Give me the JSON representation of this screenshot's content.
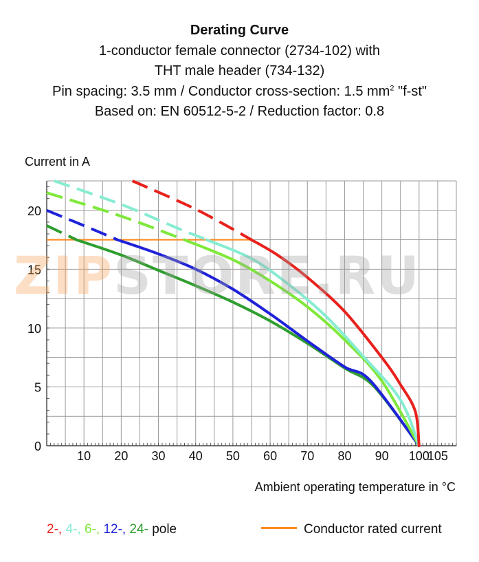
{
  "title": {
    "line1": "Derating Curve",
    "line2": "1-conductor female connector (2734-102) with",
    "line3": "THT male header (734-132)",
    "line4_a": "Pin spacing: 3.5 mm / Conductor cross-section: 1.5 mm",
    "line4_sup": "2",
    "line4_b": " \"f-st\"",
    "line5": "Based on: EN 60512-5-2 / Reduction factor: 0.8"
  },
  "watermark": {
    "a": "ZIP",
    "b": "STORE.RU"
  },
  "legend": {
    "poles": [
      {
        "text": "2-",
        "sep": ", ",
        "color": "#e8211c"
      },
      {
        "text": "4-",
        "sep": ", ",
        "color": "#86ecd2"
      },
      {
        "text": "6-",
        "sep": ", ",
        "color": "#7fe83a"
      },
      {
        "text": "12-",
        "sep": ", ",
        "color": "#1f22d8"
      },
      {
        "text": "24-",
        "sep": " ",
        "color": "#2e9e2e"
      }
    ],
    "pole_suffix": "pole",
    "rated_label": "Conductor rated current",
    "rated_color": "#ff8a1e"
  },
  "chart_data": {
    "type": "line",
    "ylabel": "Current in A",
    "xlabel": "Ambient operating temperature in °C",
    "xlim": [
      0,
      110
    ],
    "ylim": [
      0,
      22.5
    ],
    "x_ticks": [
      10,
      20,
      30,
      40,
      50,
      60,
      70,
      80,
      90,
      100,
      105
    ],
    "y_ticks": [
      0,
      5,
      10,
      15,
      20
    ],
    "grid": true,
    "rated_current": {
      "name": "Conductor rated current",
      "value": 17.5,
      "x_end": 55,
      "color": "#ff8a1e"
    },
    "series": [
      {
        "name": "2-",
        "color": "#e8211c",
        "dashed": [
          [
            23,
            22.5
          ],
          [
            40,
            20.1
          ],
          [
            55,
            17.5
          ]
        ],
        "solid": [
          [
            55,
            17.5
          ],
          [
            62,
            16.2
          ],
          [
            70,
            14.3
          ],
          [
            80,
            11.4
          ],
          [
            90,
            7.5
          ],
          [
            95,
            5.2
          ],
          [
            99,
            2.9
          ],
          [
            100,
            0
          ]
        ]
      },
      {
        "name": "4-",
        "color": "#86ecd2",
        "dashed": [
          [
            2,
            22.5
          ],
          [
            20,
            20.5
          ],
          [
            35,
            18.5
          ],
          [
            43,
            17.5
          ]
        ],
        "solid": [
          [
            43,
            17.5
          ],
          [
            55,
            15.9
          ],
          [
            65,
            13.7
          ],
          [
            75,
            11.0
          ],
          [
            85,
            7.6
          ],
          [
            95,
            3.9
          ],
          [
            100,
            0
          ]
        ]
      },
      {
        "name": "6-",
        "color": "#7fe83a",
        "dashed": [
          [
            0,
            21.5
          ],
          [
            20,
            19.5
          ],
          [
            37,
            17.5
          ]
        ],
        "solid": [
          [
            37,
            17.5
          ],
          [
            50,
            15.8
          ],
          [
            60,
            14.0
          ],
          [
            70,
            11.8
          ],
          [
            80,
            9.0
          ],
          [
            90,
            5.5
          ],
          [
            100,
            0
          ]
        ]
      },
      {
        "name": "12-",
        "color": "#1f22d8",
        "dashed": [
          [
            0,
            20.0
          ],
          [
            10,
            18.7
          ],
          [
            19,
            17.5
          ]
        ],
        "solid": [
          [
            19,
            17.5
          ],
          [
            30,
            16.3
          ],
          [
            40,
            15.0
          ],
          [
            50,
            13.3
          ],
          [
            60,
            11.2
          ],
          [
            70,
            8.9
          ],
          [
            80,
            6.7
          ],
          [
            87,
            5.5
          ],
          [
            100,
            0
          ]
        ]
      },
      {
        "name": "24-",
        "color": "#2e9e2e",
        "dashed": [
          [
            0,
            18.7
          ],
          [
            8,
            17.5
          ]
        ],
        "solid": [
          [
            8,
            17.5
          ],
          [
            20,
            16.2
          ],
          [
            30,
            14.9
          ],
          [
            40,
            13.6
          ],
          [
            50,
            12.2
          ],
          [
            60,
            10.6
          ],
          [
            70,
            8.7
          ],
          [
            80,
            6.6
          ],
          [
            88,
            5.0
          ],
          [
            100,
            0
          ]
        ]
      }
    ]
  }
}
